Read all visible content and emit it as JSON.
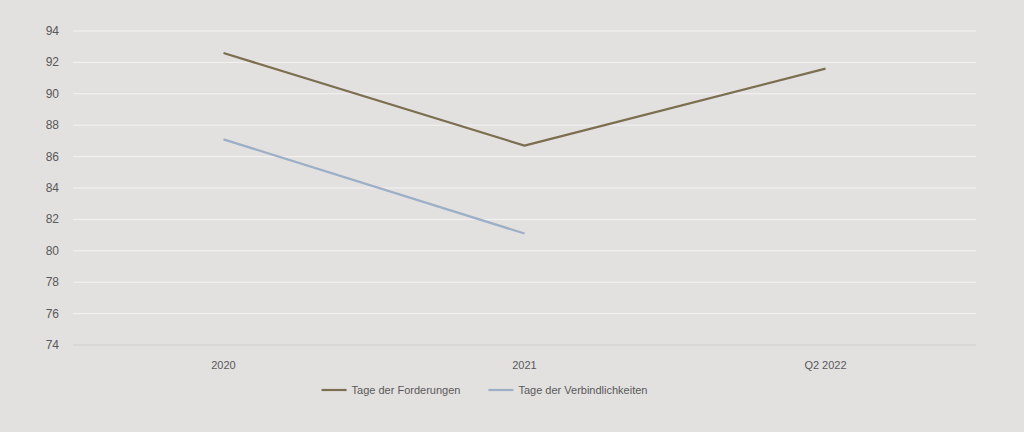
{
  "chart_data": {
    "type": "line",
    "categories": [
      "2020",
      "2021",
      "Q2 2022"
    ],
    "series": [
      {
        "name": "Tage der Forderungen",
        "color": "#7b6f4f",
        "values": [
          92.6,
          86.7,
          91.6
        ]
      },
      {
        "name": "Tage der Verbindlichkeiten",
        "color": "#9bafc7",
        "values": [
          87.1,
          81.1,
          null
        ]
      }
    ],
    "ylim": [
      74,
      94
    ],
    "yticks": [
      74,
      76,
      78,
      80,
      82,
      84,
      86,
      88,
      90,
      92,
      94
    ],
    "grid": true,
    "legend": "bottom"
  }
}
